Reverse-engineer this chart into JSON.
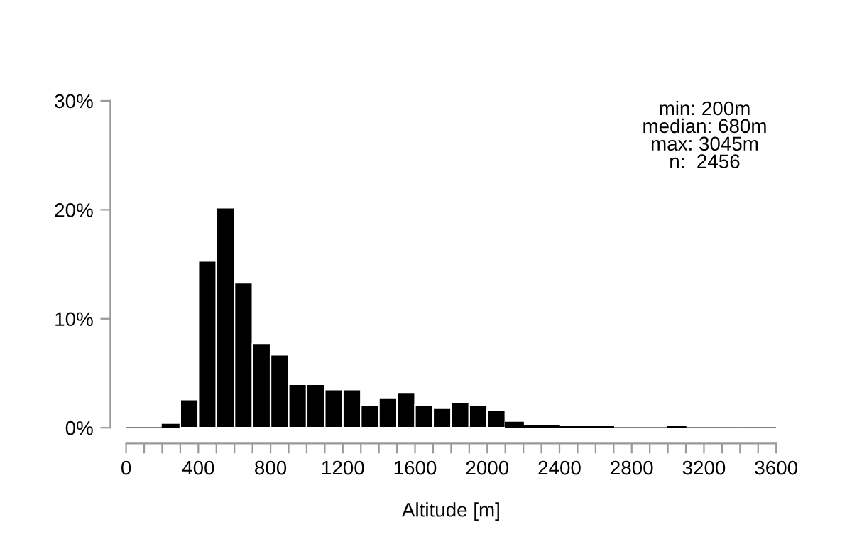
{
  "chart_data": {
    "type": "histogram",
    "xlabel": "Altitude [m]",
    "bins": [
      0,
      100,
      200,
      300,
      400,
      500,
      600,
      700,
      800,
      900,
      1000,
      1100,
      1200,
      1300,
      1400,
      1500,
      1600,
      1700,
      1800,
      1900,
      2000,
      2100,
      2200,
      2300,
      2400,
      2500,
      2600,
      2700,
      2800,
      2900,
      3000,
      3100,
      3200,
      3300,
      3400,
      3500,
      3600
    ],
    "values": [
      0,
      0,
      0.3,
      2.6,
      15.3,
      20.2,
      13.3,
      7.7,
      6.7,
      4.0,
      4.0,
      3.5,
      3.5,
      2.1,
      2.7,
      3.2,
      2.1,
      1.8,
      2.3,
      2.1,
      1.6,
      0.5,
      0.2,
      0.2,
      0.1,
      0.1,
      0.1,
      0,
      0,
      0,
      0.1,
      0,
      0,
      0,
      0,
      0
    ],
    "color": "#000000",
    "xlim": [
      0,
      3600
    ],
    "ylim": [
      0,
      30
    ],
    "xticks": [
      0,
      {
        "value": 100,
        "label": null
      },
      {
        "value": 200,
        "label": null
      },
      {
        "value": 300,
        "label": null
      },
      400,
      {
        "value": 500,
        "label": null
      },
      {
        "value": 600,
        "label": null
      },
      {
        "value": 700,
        "label": null
      },
      800,
      {
        "value": 900,
        "label": null
      },
      {
        "value": 1000,
        "label": null
      },
      {
        "value": 1100,
        "label": null
      },
      1200,
      {
        "value": 1300,
        "label": null
      },
      {
        "value": 1400,
        "label": null
      },
      {
        "value": 1500,
        "label": null
      },
      1600,
      {
        "value": 1700,
        "label": null
      },
      {
        "value": 1800,
        "label": null
      },
      {
        "value": 1900,
        "label": null
      },
      2000,
      {
        "value": 2100,
        "label": null
      },
      {
        "value": 2200,
        "label": null
      },
      {
        "value": 2300,
        "label": null
      },
      2400,
      {
        "value": 2500,
        "label": null
      },
      {
        "value": 2600,
        "label": null
      },
      {
        "value": 2700,
        "label": null
      },
      2800,
      {
        "value": 2900,
        "label": null
      },
      {
        "value": 3000,
        "label": null
      },
      {
        "value": 3100,
        "label": null
      },
      3200,
      {
        "value": 3300,
        "label": null
      },
      {
        "value": 3400,
        "label": null
      },
      {
        "value": 3500,
        "label": null
      },
      3600
    ],
    "yticks": [
      {
        "value": 0,
        "label": "0%"
      },
      {
        "value": 10,
        "label": "10%"
      },
      {
        "value": 20,
        "label": "20%"
      },
      {
        "value": 30,
        "label": "30%"
      }
    ],
    "grid": false,
    "annotations": [
      "min: 200m\nmedian: 680m\nmax: 3045m\nn:  2456"
    ]
  }
}
